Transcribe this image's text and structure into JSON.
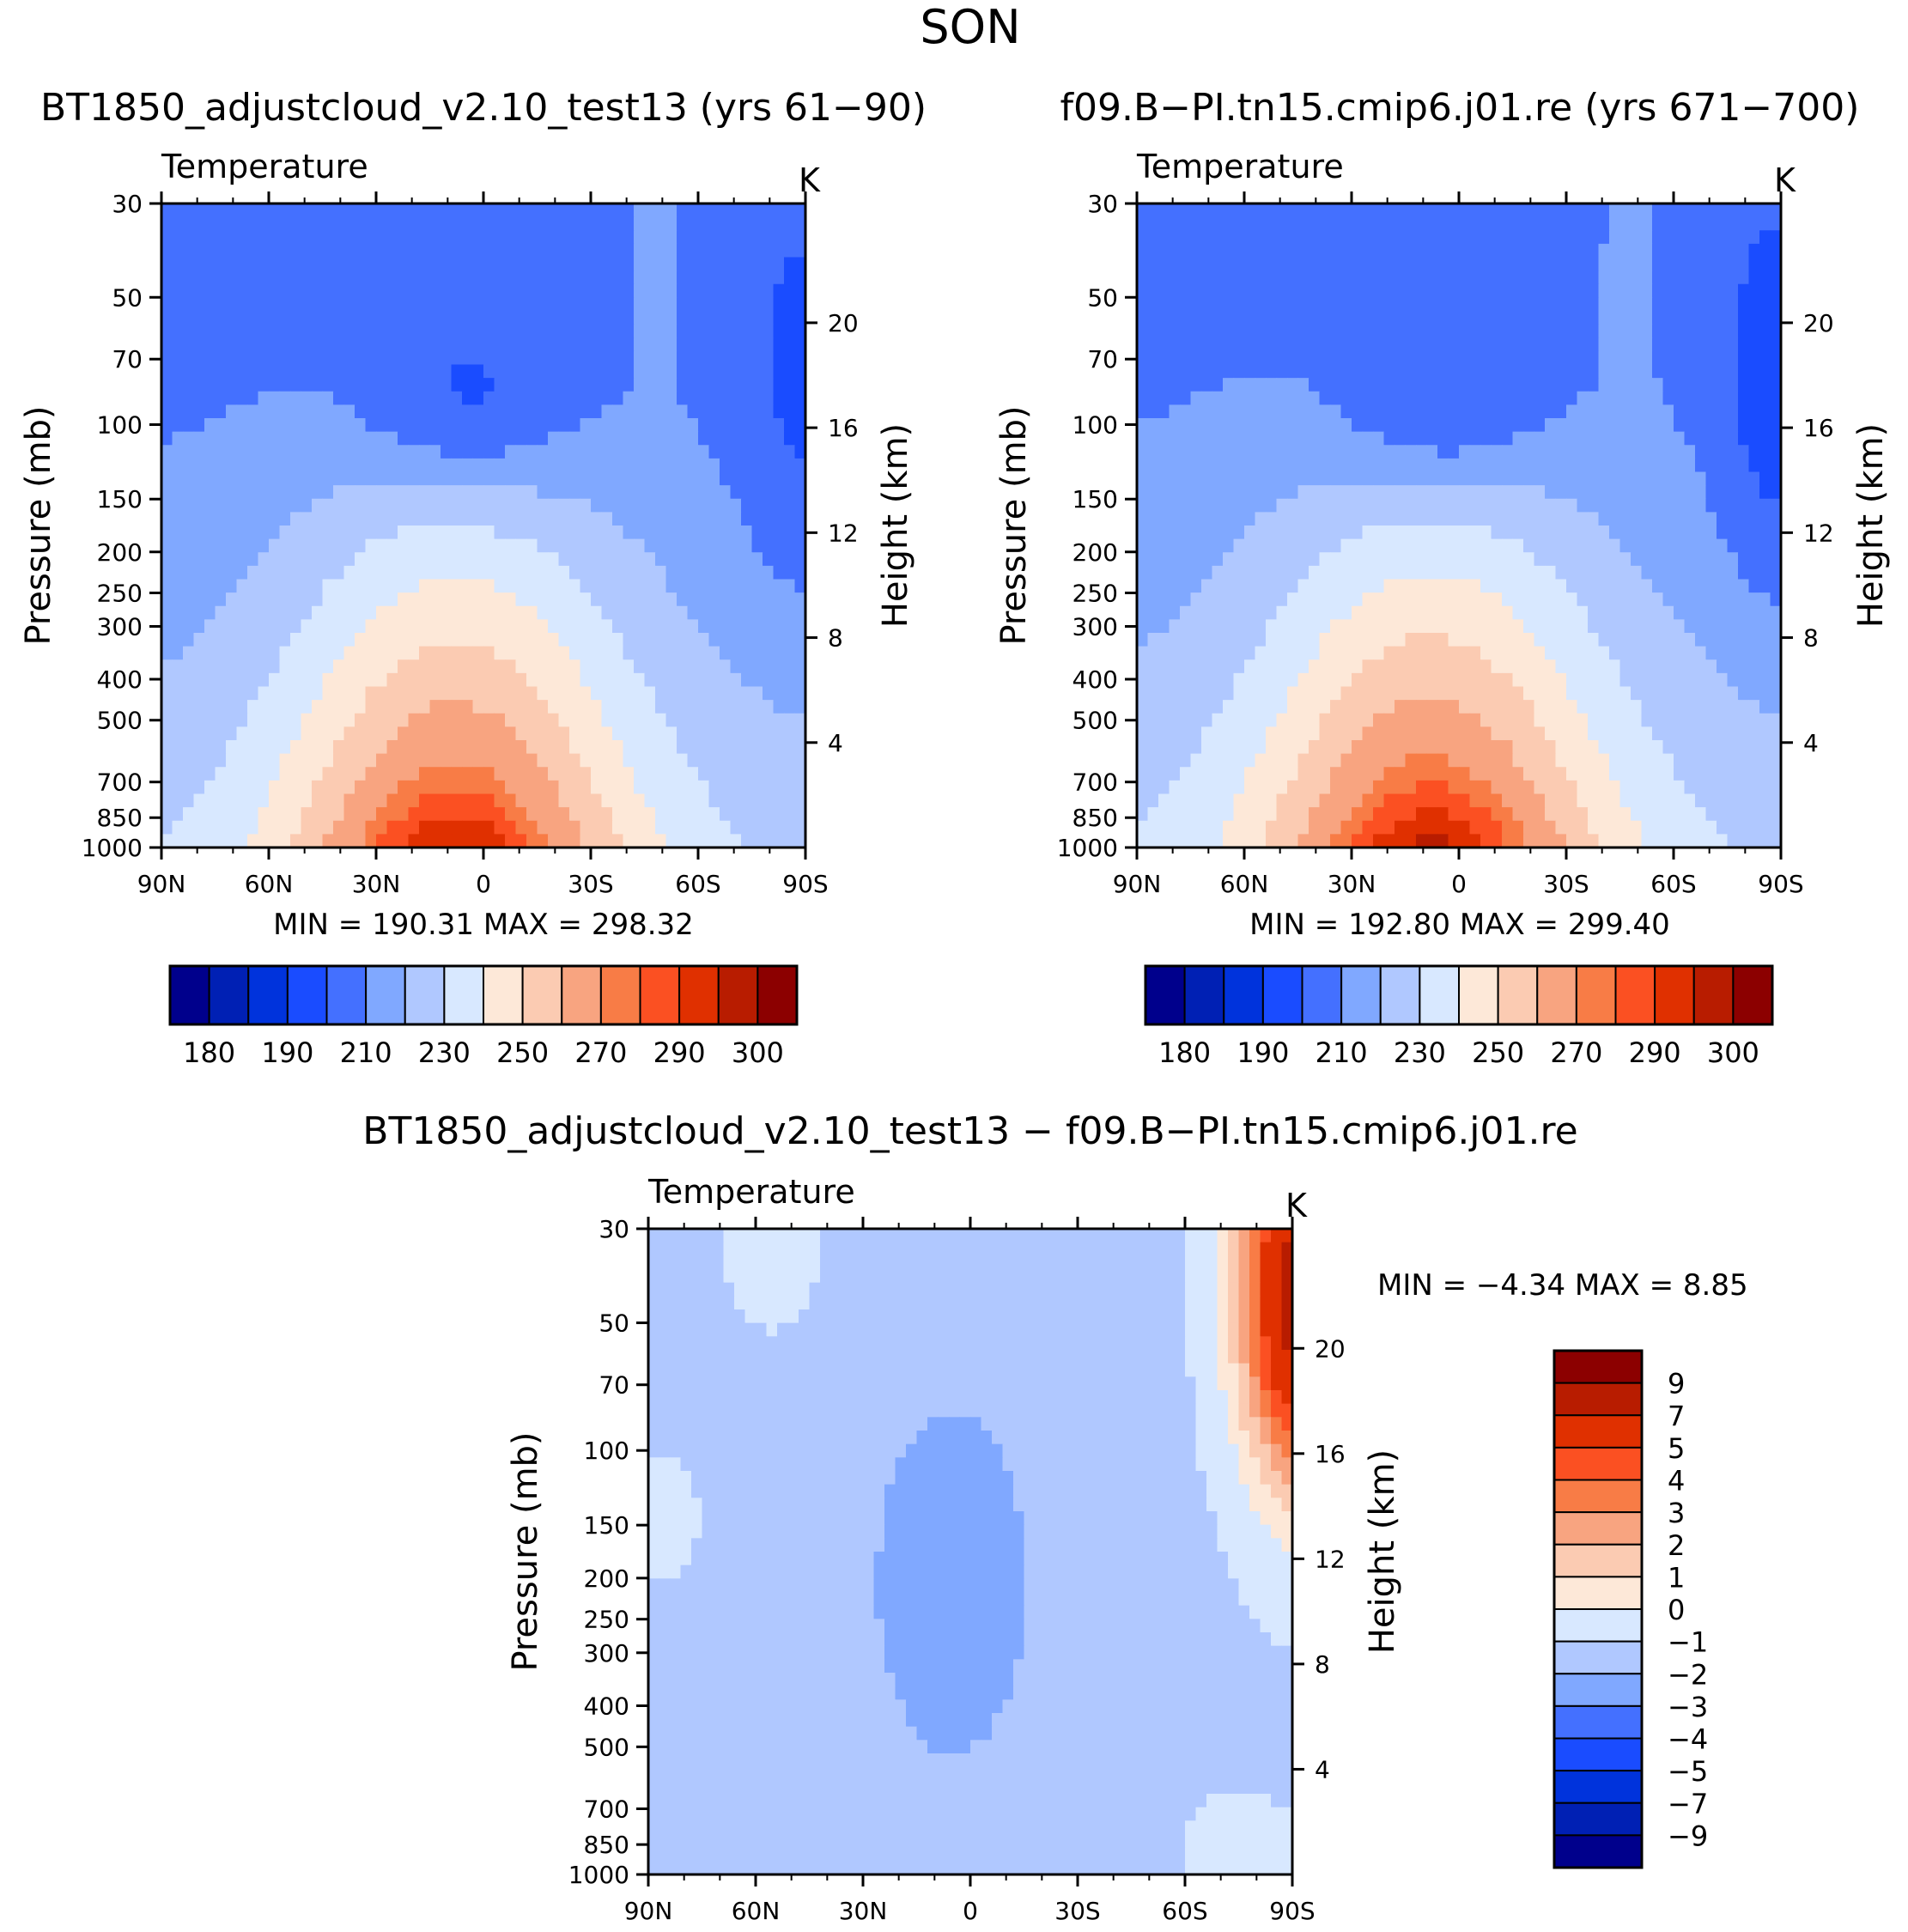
{
  "figure": {
    "title": "SON",
    "bottom_title": "BT1850_adjustcloud_v2.10_test13 − f09.B−PI.tn15.cmip6.j01.re"
  },
  "palettes": {
    "abs": [
      "#00008c",
      "#0020b4",
      "#0033dc",
      "#1a4cff",
      "#4470ff",
      "#80a8ff",
      "#b0c8ff",
      "#d8e8ff",
      "#fde8d8",
      "#fbcbb2",
      "#f8a480",
      "#f87c46",
      "#fb5022",
      "#e03000",
      "#b81c00",
      "#8c0000"
    ],
    "diff": [
      "#00008c",
      "#0020b4",
      "#0033dc",
      "#1a4cff",
      "#4470ff",
      "#80a8ff",
      "#b0c8ff",
      "#d8e8ff",
      "#fde8d8",
      "#fbcbb2",
      "#f8a480",
      "#f87c46",
      "#fb5022",
      "#e03000",
      "#b81c00",
      "#8c0000"
    ]
  },
  "chart_data": [
    {
      "type": "heatmap",
      "panel": "left",
      "title": "BT1850_adjustcloud_v2.10_test13 (yrs 61−90)",
      "left_label": "Temperature",
      "right_label": "K",
      "xlabel": "",
      "ylabel": "Pressure (mb)",
      "y2label": "Height (km)",
      "x_ticks": [
        "90N",
        "60N",
        "30N",
        "0",
        "30S",
        "60S",
        "90S"
      ],
      "y_ticks": [
        30,
        50,
        70,
        100,
        150,
        200,
        250,
        300,
        400,
        500,
        700,
        850,
        1000
      ],
      "y2_ticks": [
        20,
        16,
        12,
        8,
        4
      ],
      "ylim": [
        30,
        1000
      ],
      "stats": {
        "min_label": "MIN",
        "eq": "=",
        "min": "190.31",
        "max_label": "MAX",
        "max": "298.32"
      },
      "colorbar_labels": [
        "180",
        "190",
        "210",
        "230",
        "250",
        "270",
        "290",
        "300"
      ]
    },
    {
      "type": "heatmap",
      "panel": "right",
      "title": "f09.B−PI.tn15.cmip6.j01.re (yrs 671−700)",
      "left_label": "Temperature",
      "right_label": "K",
      "xlabel": "",
      "ylabel": "Pressure (mb)",
      "y2label": "Height (km)",
      "x_ticks": [
        "90N",
        "60N",
        "30N",
        "0",
        "30S",
        "60S",
        "90S"
      ],
      "y_ticks": [
        30,
        50,
        70,
        100,
        150,
        200,
        250,
        300,
        400,
        500,
        700,
        850,
        1000
      ],
      "y2_ticks": [
        20,
        16,
        12,
        8,
        4
      ],
      "ylim": [
        30,
        1000
      ],
      "stats": {
        "min_label": "MIN",
        "eq": "=",
        "min": "192.80",
        "max_label": "MAX",
        "max": "299.40"
      },
      "colorbar_labels": [
        "180",
        "190",
        "210",
        "230",
        "250",
        "270",
        "290",
        "300"
      ]
    },
    {
      "type": "heatmap",
      "panel": "difference",
      "title": "BT1850_adjustcloud_v2.10_test13 − f09.B−PI.tn15.cmip6.j01.re",
      "left_label": "Temperature",
      "right_label": "K",
      "xlabel": "",
      "ylabel": "Pressure (mb)",
      "y2label": "Height (km)",
      "x_ticks": [
        "90N",
        "60N",
        "30N",
        "0",
        "30S",
        "60S",
        "90S"
      ],
      "y_ticks": [
        30,
        50,
        70,
        100,
        150,
        200,
        250,
        300,
        400,
        500,
        700,
        850,
        1000
      ],
      "y2_ticks": [
        20,
        16,
        12,
        8,
        4
      ],
      "ylim": [
        30,
        1000
      ],
      "stats": {
        "min_label": "MIN",
        "eq": "=",
        "min": "−4.34",
        "max_label": "MAX",
        "max": "8.85"
      },
      "colorbar_labels": [
        "9",
        "7",
        "5",
        "4",
        "3",
        "2",
        "1",
        "0",
        "−1",
        "−2",
        "−3",
        "−4",
        "−5",
        "−7",
        "−9"
      ]
    }
  ]
}
